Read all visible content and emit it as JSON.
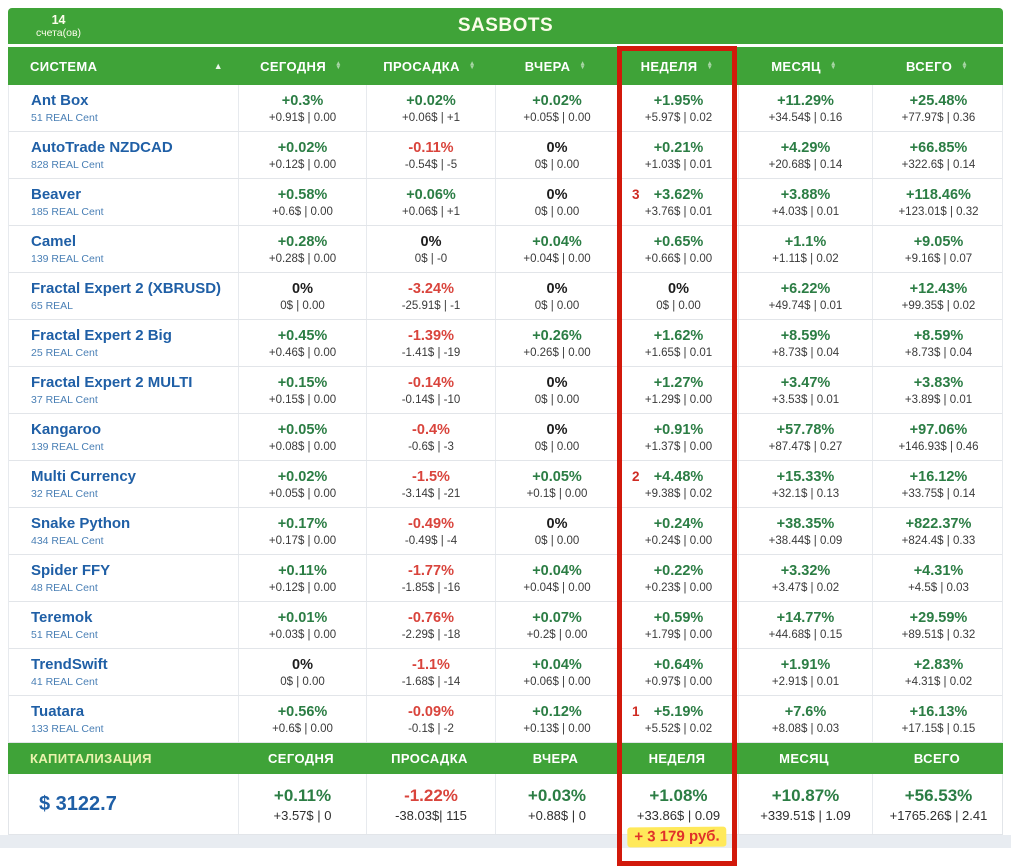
{
  "topbar": {
    "accounts_count": "14",
    "accounts_label": "счета(ов)",
    "title": "SASBOTS"
  },
  "table": {
    "columns": [
      {
        "label": "СИСТЕМА",
        "sorted": true
      },
      {
        "label": "СЕГОДНЯ",
        "sorted": false
      },
      {
        "label": "ПРОСАДКА",
        "sorted": false
      },
      {
        "label": "ВЧЕРА",
        "sorted": false
      },
      {
        "label": "НЕДЕЛЯ",
        "sorted": false
      },
      {
        "label": "МЕСЯЦ",
        "sorted": false
      },
      {
        "label": "ВСЕГО",
        "sorted": false
      }
    ],
    "rows": [
      {
        "name": "Ant Box",
        "account": "51 REAL Cent",
        "cells": [
          {
            "pct": "+0.3%",
            "sub": "+0.91$ | 0.00",
            "tone": "pos"
          },
          {
            "pct": "+0.02%",
            "sub": "+0.06$ | +1",
            "tone": "pos"
          },
          {
            "pct": "+0.02%",
            "sub": "+0.05$ | 0.00",
            "tone": "pos"
          },
          {
            "pct": "+1.95%",
            "sub": "+5.97$ | 0.02",
            "tone": "pos"
          },
          {
            "pct": "+11.29%",
            "sub": "+34.54$ | 0.16",
            "tone": "pos"
          },
          {
            "pct": "+25.48%",
            "sub": "+77.97$ | 0.36",
            "tone": "pos"
          }
        ]
      },
      {
        "name": "AutoTrade NZDCAD",
        "account": "828 REAL Cent",
        "cells": [
          {
            "pct": "+0.02%",
            "sub": "+0.12$ | 0.00",
            "tone": "pos"
          },
          {
            "pct": "-0.11%",
            "sub": "-0.54$ | -5",
            "tone": "neg"
          },
          {
            "pct": "0%",
            "sub": "0$ | 0.00",
            "tone": "zero"
          },
          {
            "pct": "+0.21%",
            "sub": "+1.03$ | 0.01",
            "tone": "pos"
          },
          {
            "pct": "+4.29%",
            "sub": "+20.68$ | 0.14",
            "tone": "pos"
          },
          {
            "pct": "+66.85%",
            "sub": "+322.6$ | 0.14",
            "tone": "pos"
          }
        ]
      },
      {
        "name": "Beaver",
        "account": "185 REAL Cent",
        "cells": [
          {
            "pct": "+0.58%",
            "sub": "+0.6$ | 0.00",
            "tone": "pos"
          },
          {
            "pct": "+0.06%",
            "sub": "+0.06$ | +1",
            "tone": "pos"
          },
          {
            "pct": "0%",
            "sub": "0$ | 0.00",
            "tone": "zero"
          },
          {
            "pct": "+3.62%",
            "sub": "+3.76$ | 0.01",
            "tone": "pos",
            "rank": "3"
          },
          {
            "pct": "+3.88%",
            "sub": "+4.03$ | 0.01",
            "tone": "pos"
          },
          {
            "pct": "+118.46%",
            "sub": "+123.01$ | 0.32",
            "tone": "pos"
          }
        ]
      },
      {
        "name": "Camel",
        "account": "139 REAL Cent",
        "cells": [
          {
            "pct": "+0.28%",
            "sub": "+0.28$ | 0.00",
            "tone": "pos"
          },
          {
            "pct": "0%",
            "sub": "0$ | -0",
            "tone": "zero"
          },
          {
            "pct": "+0.04%",
            "sub": "+0.04$ | 0.00",
            "tone": "pos"
          },
          {
            "pct": "+0.65%",
            "sub": "+0.66$ | 0.00",
            "tone": "pos"
          },
          {
            "pct": "+1.1%",
            "sub": "+1.11$ | 0.02",
            "tone": "pos"
          },
          {
            "pct": "+9.05%",
            "sub": "+9.16$ | 0.07",
            "tone": "pos"
          }
        ]
      },
      {
        "name": "Fractal Expert 2 (XBRUSD)",
        "account": "65 REAL",
        "cells": [
          {
            "pct": "0%",
            "sub": "0$ | 0.00",
            "tone": "zero"
          },
          {
            "pct": "-3.24%",
            "sub": "-25.91$ | -1",
            "tone": "neg"
          },
          {
            "pct": "0%",
            "sub": "0$ | 0.00",
            "tone": "zero"
          },
          {
            "pct": "0%",
            "sub": "0$ | 0.00",
            "tone": "zero"
          },
          {
            "pct": "+6.22%",
            "sub": "+49.74$ | 0.01",
            "tone": "pos"
          },
          {
            "pct": "+12.43%",
            "sub": "+99.35$ | 0.02",
            "tone": "pos"
          }
        ]
      },
      {
        "name": "Fractal Expert 2 Big",
        "account": "25 REAL Cent",
        "cells": [
          {
            "pct": "+0.45%",
            "sub": "+0.46$ | 0.00",
            "tone": "pos"
          },
          {
            "pct": "-1.39%",
            "sub": "-1.41$ | -19",
            "tone": "neg"
          },
          {
            "pct": "+0.26%",
            "sub": "+0.26$ | 0.00",
            "tone": "pos"
          },
          {
            "pct": "+1.62%",
            "sub": "+1.65$ | 0.01",
            "tone": "pos"
          },
          {
            "pct": "+8.59%",
            "sub": "+8.73$ | 0.04",
            "tone": "pos"
          },
          {
            "pct": "+8.59%",
            "sub": "+8.73$ | 0.04",
            "tone": "pos"
          }
        ]
      },
      {
        "name": "Fractal Expert 2 MULTI",
        "account": "37 REAL Cent",
        "cells": [
          {
            "pct": "+0.15%",
            "sub": "+0.15$ | 0.00",
            "tone": "pos"
          },
          {
            "pct": "-0.14%",
            "sub": "-0.14$ | -10",
            "tone": "neg"
          },
          {
            "pct": "0%",
            "sub": "0$ | 0.00",
            "tone": "zero"
          },
          {
            "pct": "+1.27%",
            "sub": "+1.29$ | 0.00",
            "tone": "pos"
          },
          {
            "pct": "+3.47%",
            "sub": "+3.53$ | 0.01",
            "tone": "pos"
          },
          {
            "pct": "+3.83%",
            "sub": "+3.89$ | 0.01",
            "tone": "pos"
          }
        ]
      },
      {
        "name": "Kangaroo",
        "account": "139 REAL Cent",
        "cells": [
          {
            "pct": "+0.05%",
            "sub": "+0.08$ | 0.00",
            "tone": "pos"
          },
          {
            "pct": "-0.4%",
            "sub": "-0.6$ | -3",
            "tone": "neg"
          },
          {
            "pct": "0%",
            "sub": "0$ | 0.00",
            "tone": "zero"
          },
          {
            "pct": "+0.91%",
            "sub": "+1.37$ | 0.00",
            "tone": "pos"
          },
          {
            "pct": "+57.78%",
            "sub": "+87.47$ | 0.27",
            "tone": "pos"
          },
          {
            "pct": "+97.06%",
            "sub": "+146.93$ | 0.46",
            "tone": "pos"
          }
        ]
      },
      {
        "name": "Multi Currency",
        "account": "32 REAL Cent",
        "cells": [
          {
            "pct": "+0.02%",
            "sub": "+0.05$ | 0.00",
            "tone": "pos"
          },
          {
            "pct": "-1.5%",
            "sub": "-3.14$ | -21",
            "tone": "neg"
          },
          {
            "pct": "+0.05%",
            "sub": "+0.1$ | 0.00",
            "tone": "pos"
          },
          {
            "pct": "+4.48%",
            "sub": "+9.38$ | 0.02",
            "tone": "pos",
            "rank": "2"
          },
          {
            "pct": "+15.33%",
            "sub": "+32.1$ | 0.13",
            "tone": "pos"
          },
          {
            "pct": "+16.12%",
            "sub": "+33.75$ | 0.14",
            "tone": "pos"
          }
        ]
      },
      {
        "name": "Snake Python",
        "account": "434 REAL Cent",
        "cells": [
          {
            "pct": "+0.17%",
            "sub": "+0.17$ | 0.00",
            "tone": "pos"
          },
          {
            "pct": "-0.49%",
            "sub": "-0.49$ | -4",
            "tone": "neg"
          },
          {
            "pct": "0%",
            "sub": "0$ | 0.00",
            "tone": "zero"
          },
          {
            "pct": "+0.24%",
            "sub": "+0.24$ | 0.00",
            "tone": "pos"
          },
          {
            "pct": "+38.35%",
            "sub": "+38.44$ | 0.09",
            "tone": "pos"
          },
          {
            "pct": "+822.37%",
            "sub": "+824.4$ | 0.33",
            "tone": "pos"
          }
        ]
      },
      {
        "name": "Spider FFY",
        "account": "48 REAL Cent",
        "cells": [
          {
            "pct": "+0.11%",
            "sub": "+0.12$ | 0.00",
            "tone": "pos"
          },
          {
            "pct": "-1.77%",
            "sub": "-1.85$ | -16",
            "tone": "neg"
          },
          {
            "pct": "+0.04%",
            "sub": "+0.04$ | 0.00",
            "tone": "pos"
          },
          {
            "pct": "+0.22%",
            "sub": "+0.23$ | 0.00",
            "tone": "pos"
          },
          {
            "pct": "+3.32%",
            "sub": "+3.47$ | 0.02",
            "tone": "pos"
          },
          {
            "pct": "+4.31%",
            "sub": "+4.5$ | 0.03",
            "tone": "pos"
          }
        ]
      },
      {
        "name": "Teremok",
        "account": "51 REAL Cent",
        "cells": [
          {
            "pct": "+0.01%",
            "sub": "+0.03$ | 0.00",
            "tone": "pos"
          },
          {
            "pct": "-0.76%",
            "sub": "-2.29$ | -18",
            "tone": "neg"
          },
          {
            "pct": "+0.07%",
            "sub": "+0.2$ | 0.00",
            "tone": "pos"
          },
          {
            "pct": "+0.59%",
            "sub": "+1.79$ | 0.00",
            "tone": "pos"
          },
          {
            "pct": "+14.77%",
            "sub": "+44.68$ | 0.15",
            "tone": "pos"
          },
          {
            "pct": "+29.59%",
            "sub": "+89.51$ | 0.32",
            "tone": "pos"
          }
        ]
      },
      {
        "name": "TrendSwift",
        "account": "41 REAL Cent",
        "cells": [
          {
            "pct": "0%",
            "sub": "0$ | 0.00",
            "tone": "zero"
          },
          {
            "pct": "-1.1%",
            "sub": "-1.68$ | -14",
            "tone": "neg"
          },
          {
            "pct": "+0.04%",
            "sub": "+0.06$ | 0.00",
            "tone": "pos"
          },
          {
            "pct": "+0.64%",
            "sub": "+0.97$ | 0.00",
            "tone": "pos"
          },
          {
            "pct": "+1.91%",
            "sub": "+2.91$ | 0.01",
            "tone": "pos"
          },
          {
            "pct": "+2.83%",
            "sub": "+4.31$ | 0.02",
            "tone": "pos"
          }
        ]
      },
      {
        "name": "Tuatara",
        "account": "133 REAL Cent",
        "cells": [
          {
            "pct": "+0.56%",
            "sub": "+0.6$ | 0.00",
            "tone": "pos"
          },
          {
            "pct": "-0.09%",
            "sub": "-0.1$ | -2",
            "tone": "neg"
          },
          {
            "pct": "+0.12%",
            "sub": "+0.13$ | 0.00",
            "tone": "pos"
          },
          {
            "pct": "+5.19%",
            "sub": "+5.52$ | 0.02",
            "tone": "pos",
            "rank": "1"
          },
          {
            "pct": "+7.6%",
            "sub": "+8.08$ | 0.03",
            "tone": "pos"
          },
          {
            "pct": "+16.13%",
            "sub": "+17.15$ | 0.15",
            "tone": "pos"
          }
        ]
      }
    ]
  },
  "summary": {
    "label": "КАПИТАЛИЗАЦИЯ",
    "columns": [
      "СЕГОДНЯ",
      "ПРОСАДКА",
      "ВЧЕРА",
      "НЕДЕЛЯ",
      "МЕСЯЦ",
      "ВСЕГО"
    ],
    "capital": "$ 3122.7",
    "cells": [
      {
        "pct": "+0.11%",
        "sub": "+3.57$ | 0",
        "tone": "pos"
      },
      {
        "pct": "-1.22%",
        "sub": "-38.03$| 115",
        "tone": "neg"
      },
      {
        "pct": "+0.03%",
        "sub": "+0.88$ | 0",
        "tone": "pos"
      },
      {
        "pct": "+1.08%",
        "sub": "+33.86$ | 0.09",
        "tone": "pos",
        "extra": "+ 3 179 руб."
      },
      {
        "pct": "+10.87%",
        "sub": "+339.51$ | 1.09",
        "tone": "pos"
      },
      {
        "pct": "+56.53%",
        "sub": "+1765.26$ | 2.41",
        "tone": "pos"
      }
    ]
  },
  "annotation": {
    "shape": "red-rectangle",
    "highlights_column": "НЕДЕЛЯ"
  },
  "colors": {
    "green_bar": "#3fa338",
    "positive": "#2b7d44",
    "negative": "#d9443c",
    "name_blue": "#1f5fa6",
    "annotation_red": "#d2190b",
    "highlight_yellow": "#ffe95a"
  }
}
